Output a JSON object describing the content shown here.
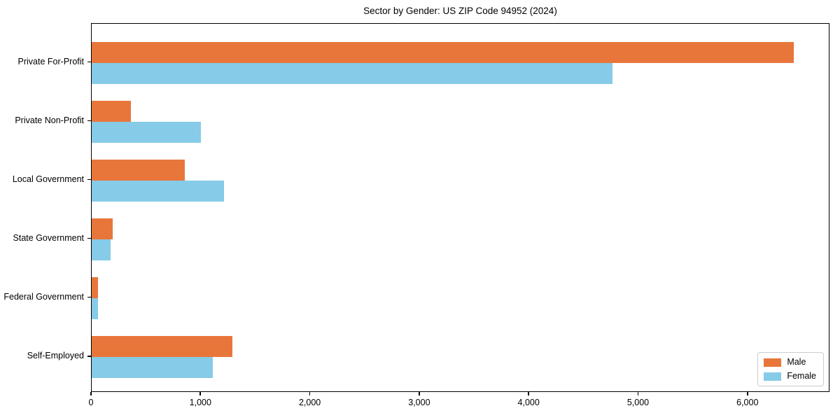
{
  "chart_data": {
    "type": "bar",
    "orientation": "horizontal",
    "title": "Sector by Gender: US ZIP Code 94952 (2024)",
    "categories": [
      "Private For-Profit",
      "Private Non-Profit",
      "Local Government",
      "State Government",
      "Federal Government",
      "Self-Employed"
    ],
    "series": [
      {
        "name": "Male",
        "color": "#e8763b",
        "values": [
          6430,
          360,
          850,
          190,
          55,
          1290
        ]
      },
      {
        "name": "Female",
        "color": "#86cbe8",
        "values": [
          4770,
          1000,
          1210,
          170,
          60,
          1110
        ]
      }
    ],
    "xlim": [
      0,
      6750
    ],
    "x_ticks": [
      0,
      1000,
      2000,
      3000,
      4000,
      5000,
      6000
    ],
    "x_tick_labels": [
      "0",
      "1,000",
      "2,000",
      "3,000",
      "4,000",
      "5,000",
      "6,000"
    ],
    "legend_position": "lower right",
    "grid": false,
    "background": "#ffffff",
    "spine_color": "#000000"
  }
}
